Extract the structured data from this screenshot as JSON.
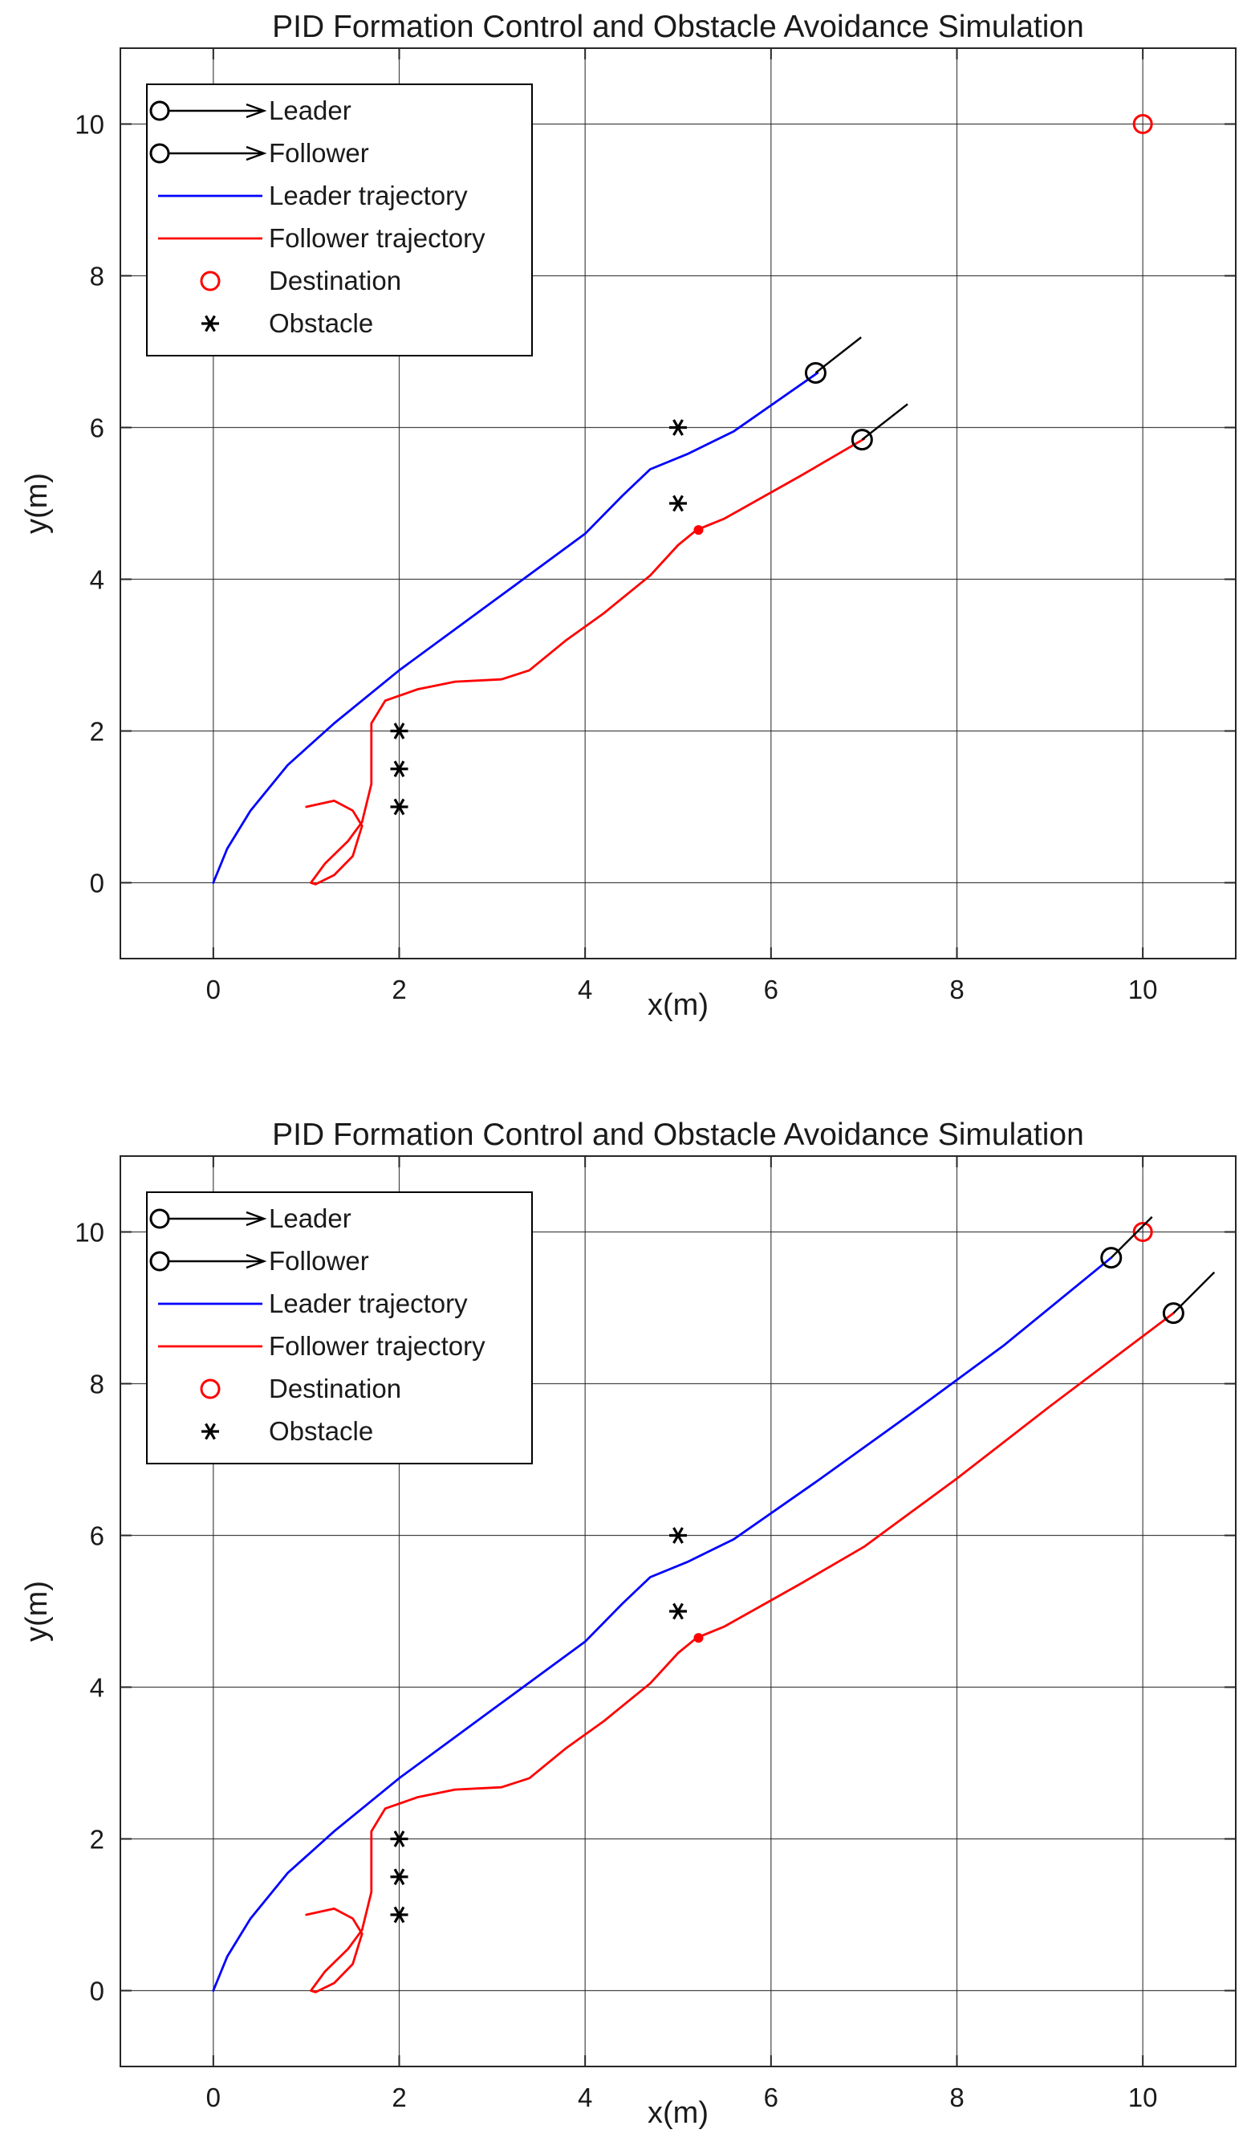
{
  "chart_data": [
    {
      "type": "line",
      "title": "PID Formation Control and Obstacle Avoidance Simulation",
      "xlabel": "x(m)",
      "ylabel": "y(m)",
      "xlim": [
        -1,
        11
      ],
      "ylim": [
        -1,
        11
      ],
      "xticks": [
        0,
        2,
        4,
        6,
        8,
        10
      ],
      "yticks": [
        0,
        2,
        4,
        6,
        8,
        10
      ],
      "grid": true,
      "legend_position": "top-left",
      "legend": [
        "Leader",
        "Follower",
        "Leader trajectory",
        "Follower trajectory",
        "Destination",
        "Obstacle"
      ],
      "series": [
        {
          "name": "Leader trajectory",
          "color": "#0000ff",
          "points": [
            [
              0,
              0
            ],
            [
              0.15,
              0.45
            ],
            [
              0.4,
              0.95
            ],
            [
              0.8,
              1.55
            ],
            [
              1.3,
              2.1
            ],
            [
              2,
              2.8
            ],
            [
              3,
              3.7
            ],
            [
              4,
              4.6
            ],
            [
              4.4,
              5.1
            ],
            [
              4.7,
              5.45
            ],
            [
              5.1,
              5.65
            ],
            [
              5.6,
              5.95
            ],
            [
              6.5,
              6.72
            ]
          ]
        },
        {
          "name": "Follower trajectory",
          "color": "#ff0000",
          "points": [
            [
              1,
              1
            ],
            [
              1.3,
              1.08
            ],
            [
              1.5,
              0.95
            ],
            [
              1.6,
              0.75
            ],
            [
              1.5,
              0.35
            ],
            [
              1.3,
              0.1
            ],
            [
              1.1,
              -0.02
            ],
            [
              1.05,
              0
            ],
            [
              1.2,
              0.25
            ],
            [
              1.45,
              0.55
            ],
            [
              1.6,
              0.8
            ],
            [
              1.7,
              1.3
            ],
            [
              1.7,
              2.1
            ],
            [
              1.85,
              2.4
            ],
            [
              2.2,
              2.55
            ],
            [
              2.6,
              2.65
            ],
            [
              3.1,
              2.68
            ],
            [
              3.4,
              2.8
            ],
            [
              3.8,
              3.2
            ],
            [
              4.2,
              3.55
            ],
            [
              4.7,
              4.05
            ],
            [
              5.0,
              4.45
            ],
            [
              5.2,
              4.65
            ],
            [
              5.5,
              4.8
            ],
            [
              6.3,
              5.35
            ],
            [
              7,
              5.85
            ]
          ]
        }
      ],
      "leader_position": [
        6.48,
        6.72
      ],
      "follower_position": [
        6.98,
        5.84
      ],
      "heading_deg": 38,
      "destination": [
        10,
        10
      ],
      "obstacles": [
        [
          2,
          1
        ],
        [
          2,
          1.5
        ],
        [
          2,
          2
        ],
        [
          5,
          5
        ],
        [
          5,
          6
        ]
      ],
      "marker_dot": [
        5.22,
        4.65
      ]
    },
    {
      "type": "line",
      "title": "PID Formation Control and Obstacle Avoidance Simulation",
      "xlabel": "x(m)",
      "ylabel": "y(m)",
      "xlim": [
        -1,
        11
      ],
      "ylim": [
        -1,
        11
      ],
      "xticks": [
        0,
        2,
        4,
        6,
        8,
        10
      ],
      "yticks": [
        0,
        2,
        4,
        6,
        8,
        10
      ],
      "grid": true,
      "legend_position": "top-left",
      "legend": [
        "Leader",
        "Follower",
        "Leader trajectory",
        "Follower trajectory",
        "Destination",
        "Obstacle"
      ],
      "series": [
        {
          "name": "Leader trajectory",
          "color": "#0000ff",
          "points": [
            [
              0,
              0
            ],
            [
              0.15,
              0.45
            ],
            [
              0.4,
              0.95
            ],
            [
              0.8,
              1.55
            ],
            [
              1.3,
              2.1
            ],
            [
              2,
              2.8
            ],
            [
              3,
              3.7
            ],
            [
              4,
              4.6
            ],
            [
              4.4,
              5.1
            ],
            [
              4.7,
              5.45
            ],
            [
              5.1,
              5.65
            ],
            [
              5.6,
              5.95
            ],
            [
              6.5,
              6.72
            ],
            [
              7.5,
              7.6
            ],
            [
              8.5,
              8.5
            ],
            [
              9.66,
              9.66
            ]
          ]
        },
        {
          "name": "Follower trajectory",
          "color": "#ff0000",
          "points": [
            [
              1,
              1
            ],
            [
              1.3,
              1.08
            ],
            [
              1.5,
              0.95
            ],
            [
              1.6,
              0.75
            ],
            [
              1.5,
              0.35
            ],
            [
              1.3,
              0.1
            ],
            [
              1.1,
              -0.02
            ],
            [
              1.05,
              0
            ],
            [
              1.2,
              0.25
            ],
            [
              1.45,
              0.55
            ],
            [
              1.6,
              0.8
            ],
            [
              1.7,
              1.3
            ],
            [
              1.7,
              2.1
            ],
            [
              1.85,
              2.4
            ],
            [
              2.2,
              2.55
            ],
            [
              2.6,
              2.65
            ],
            [
              3.1,
              2.68
            ],
            [
              3.4,
              2.8
            ],
            [
              3.8,
              3.2
            ],
            [
              4.2,
              3.55
            ],
            [
              4.7,
              4.05
            ],
            [
              5.0,
              4.45
            ],
            [
              5.2,
              4.65
            ],
            [
              5.5,
              4.8
            ],
            [
              6.3,
              5.35
            ],
            [
              7,
              5.85
            ],
            [
              8,
              6.75
            ],
            [
              9,
              7.7
            ],
            [
              10.33,
              8.93
            ]
          ]
        }
      ],
      "leader_position": [
        9.66,
        9.66
      ],
      "follower_position": [
        10.33,
        8.93
      ],
      "heading_deg": 45,
      "destination": [
        10,
        10
      ],
      "obstacles": [
        [
          2,
          1
        ],
        [
          2,
          1.5
        ],
        [
          2,
          2
        ],
        [
          5,
          5
        ],
        [
          5,
          6
        ]
      ],
      "marker_dot": [
        5.22,
        4.65
      ]
    }
  ]
}
